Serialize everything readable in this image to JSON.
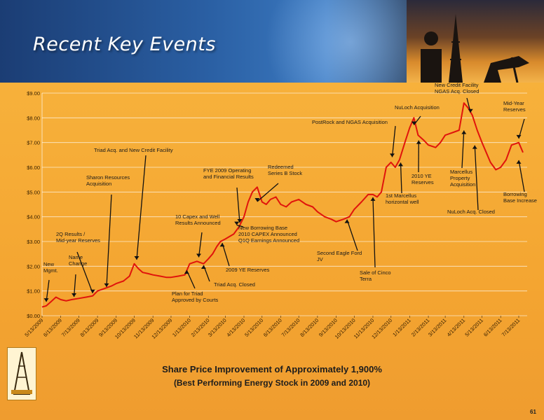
{
  "slide": {
    "title": "Recent Key Events",
    "page_number": "61"
  },
  "footer": {
    "headline": "Share Price Improvement of Approximately 1,900%",
    "subline": "(Best Performing Energy Stock in 2009 and 2010)"
  },
  "colors": {
    "line": "#e0140c",
    "arrow": "#111111",
    "grid": "#ffffff",
    "background": "#f4a531",
    "header": "#2a5fa3"
  },
  "chart_data": {
    "type": "line",
    "title": "",
    "xlabel": "",
    "ylabel": "",
    "ylim": [
      0,
      9
    ],
    "grid": true,
    "legend": "none",
    "y_ticks": [
      "$0.00",
      "$1.00",
      "$2.00",
      "$3.00",
      "$4.00",
      "$5.00",
      "$6.00",
      "$7.00",
      "$8.00",
      "$9.00"
    ],
    "x_ticks": [
      "5/13/2009",
      "6/13/2009",
      "7/13/2009",
      "8/13/2009",
      "9/13/2009",
      "10/13/2009",
      "11/13/2009",
      "12/13/2009",
      "1/13/2010",
      "2/13/2010",
      "3/13/2010",
      "4/13/2010",
      "5/13/2010",
      "6/13/2010",
      "7/13/2010",
      "8/13/2010",
      "9/13/2010",
      "10/13/2010",
      "11/13/2010",
      "12/13/2010",
      "1/13/2011",
      "2/13/2011",
      "3/13/2011",
      "4/13/2011",
      "5/13/2011",
      "6/13/2011",
      "7/13/2011"
    ],
    "series": [
      {
        "x": [
          "2009-05-13",
          "2009-05-20",
          "2009-05-27",
          "2009-06-05",
          "2009-06-13",
          "2009-06-22",
          "2009-07-01",
          "2009-07-13",
          "2009-07-25",
          "2009-08-05",
          "2009-08-13",
          "2009-08-25",
          "2009-09-05",
          "2009-09-13",
          "2009-09-25",
          "2009-10-05",
          "2009-10-13",
          "2009-10-20",
          "2009-10-27",
          "2009-11-05",
          "2009-11-13",
          "2009-11-25",
          "2009-12-05",
          "2009-12-13",
          "2009-12-25",
          "2010-01-05",
          "2010-01-13",
          "2010-01-25",
          "2010-02-05",
          "2010-02-13",
          "2010-02-20",
          "2010-02-27",
          "2010-03-05",
          "2010-03-13",
          "2010-03-20",
          "2010-03-27",
          "2010-04-05",
          "2010-04-13",
          "2010-04-20",
          "2010-04-27",
          "2010-05-05",
          "2010-05-13",
          "2010-05-20",
          "2010-05-27",
          "2010-06-05",
          "2010-06-13",
          "2010-06-22",
          "2010-07-01",
          "2010-07-13",
          "2010-07-25",
          "2010-08-05",
          "2010-08-13",
          "2010-08-25",
          "2010-09-05",
          "2010-09-13",
          "2010-09-25",
          "2010-10-05",
          "2010-10-13",
          "2010-10-25",
          "2010-11-05",
          "2010-11-13",
          "2010-11-20",
          "2010-11-27",
          "2010-12-05",
          "2010-12-13",
          "2010-12-20",
          "2010-12-27",
          "2011-01-05",
          "2011-01-13",
          "2011-01-20",
          "2011-01-27",
          "2011-02-05",
          "2011-02-13",
          "2011-02-25",
          "2011-03-05",
          "2011-03-13",
          "2011-03-25",
          "2011-04-05",
          "2011-04-13",
          "2011-04-20",
          "2011-04-27",
          "2011-05-05",
          "2011-05-13",
          "2011-05-20",
          "2011-05-27",
          "2011-06-05",
          "2011-06-13",
          "2011-06-22",
          "2011-07-01",
          "2011-07-13",
          "2011-07-20"
        ],
        "y": [
          0.35,
          0.4,
          0.55,
          0.75,
          0.65,
          0.6,
          0.65,
          0.7,
          0.75,
          0.8,
          1.0,
          1.1,
          1.2,
          1.3,
          1.4,
          1.6,
          2.1,
          1.9,
          1.75,
          1.7,
          1.65,
          1.6,
          1.55,
          1.55,
          1.6,
          1.65,
          2.1,
          2.2,
          2.1,
          2.3,
          2.5,
          2.8,
          3.0,
          3.1,
          3.2,
          3.3,
          3.6,
          4.0,
          4.6,
          5.0,
          5.2,
          4.6,
          4.5,
          4.7,
          4.8,
          4.5,
          4.4,
          4.6,
          4.7,
          4.5,
          4.4,
          4.2,
          4.0,
          3.9,
          3.8,
          3.9,
          4.0,
          4.3,
          4.6,
          4.9,
          4.9,
          4.8,
          5.0,
          6.0,
          6.2,
          6.0,
          6.3,
          7.0,
          7.6,
          8.0,
          7.3,
          7.1,
          6.9,
          6.8,
          7.0,
          7.3,
          7.4,
          7.5,
          8.6,
          8.4,
          8.1,
          7.5,
          7.0,
          6.6,
          6.2,
          5.9,
          6.0,
          6.3,
          6.9,
          7.0,
          6.6
        ]
      }
    ],
    "annotations": [
      {
        "text": "New\nMgmt.",
        "x": "2009-05-20",
        "y": 0.45
      },
      {
        "text": "Name\nChange",
        "x": "2009-07-05",
        "y": 0.65
      },
      {
        "text": "2Q Results /\nMid-year Reserves",
        "x": "2009-08-05",
        "y": 0.8
      },
      {
        "text": "Sharon Resources\nAcquisition",
        "x": "2009-08-28",
        "y": 1.05
      },
      {
        "text": "Triad Acq. and New Credit Facility",
        "x": "2009-10-17",
        "y": 2.15
      },
      {
        "text": "Plan for Triad\nApproved by Courts",
        "x": "2010-01-08",
        "y": 1.95
      },
      {
        "text": "10 Capex and Well\nResults Announced",
        "x": "2010-01-28",
        "y": 2.25
      },
      {
        "text": "Triad Acq. Closed",
        "x": "2010-02-05",
        "y": 2.15
      },
      {
        "text": "2009 YE Reserves",
        "x": "2010-03-08",
        "y": 3.05
      },
      {
        "text": "FYE 2009 Operating\nand Financial Results",
        "x": "2010-04-06",
        "y": 3.65
      },
      {
        "text": "New Borrowing Base\n2010 CAPEX Announced\nQ1Q Earnings Announced",
        "x": "2010-04-01",
        "y": 3.55
      },
      {
        "text": "Redeemed\nSeries B Stock",
        "x": "2010-05-05",
        "y": 4.5
      },
      {
        "text": "Second Eagle Ford\nJV",
        "x": "2010-10-01",
        "y": 4.0
      },
      {
        "text": "Sale of Cinco\nTerra",
        "x": "2010-11-13",
        "y": 4.9
      },
      {
        "text": "PostRock and NGAS Acquisition",
        "x": "2010-12-15",
        "y": 6.3
      },
      {
        "text": "1st Marcellus\nhorizontal well",
        "x": "2010-12-29",
        "y": 6.3
      },
      {
        "text": "NuLoch Acquisition",
        "x": "2011-01-20",
        "y": 7.6
      },
      {
        "text": "2010 YE\nReserves",
        "x": "2011-01-28",
        "y": 7.2
      },
      {
        "text": "New Credit Facility\nNGAS Acq. Closed",
        "x": "2011-04-24",
        "y": 8.1
      },
      {
        "text": "Marcellus\nProperty\nAcquisition",
        "x": "2011-04-13",
        "y": 7.6
      },
      {
        "text": "NuLoch Acq. Closed",
        "x": "2011-05-01",
        "y": 7.0
      },
      {
        "text": "Mid-Year\nReserves",
        "x": "2011-07-13",
        "y": 7.05
      },
      {
        "text": "Borrowing\nBase Increase",
        "x": "2011-07-13",
        "y": 6.4
      }
    ]
  }
}
